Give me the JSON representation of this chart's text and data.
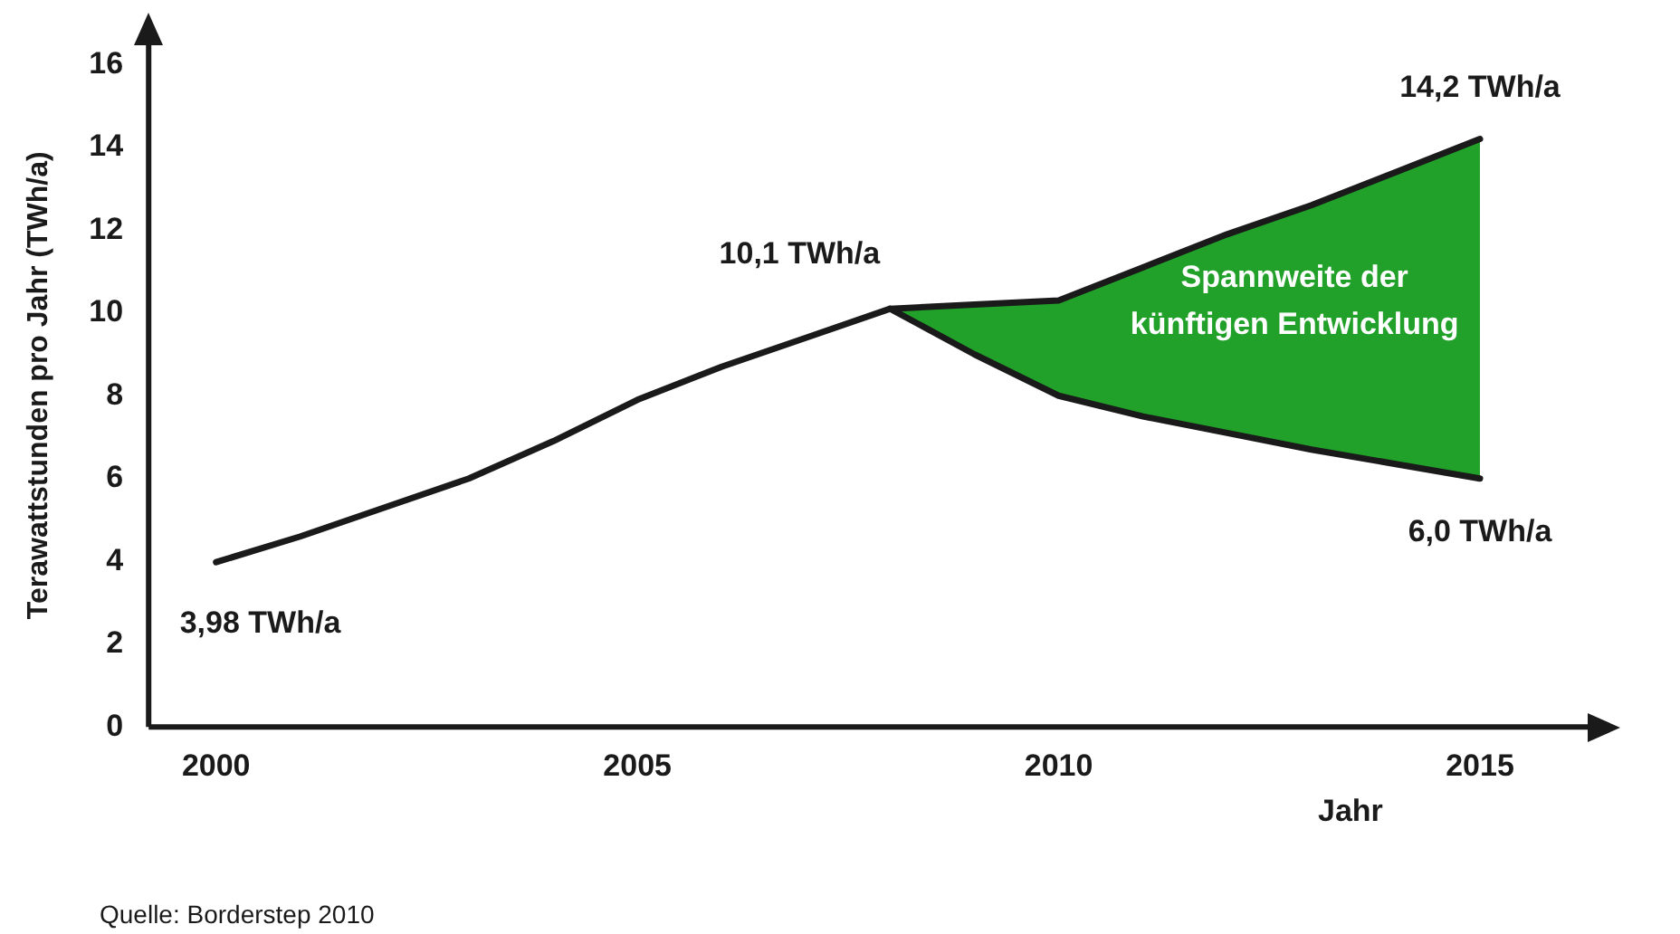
{
  "chart_data": {
    "type": "line",
    "xlabel": "Jahr",
    "ylabel": "Terawattstunden pro Jahr (TWh/a)",
    "xlim": [
      1999.2,
      2016.3
    ],
    "xticks": [
      2000,
      2005,
      2010,
      2015
    ],
    "ylim": [
      0,
      16.5
    ],
    "yticks": [
      0,
      2,
      4,
      6,
      8,
      10,
      12,
      14,
      16
    ],
    "grid": false,
    "legend": false,
    "series": [
      {
        "type": "area",
        "color": "#22a12a",
        "x": [
          2008,
          2009,
          2010,
          2011,
          2012,
          2013,
          2014,
          2015
        ],
        "values": [
          10.1,
          10.2,
          10.3,
          11.1,
          11.9,
          12.6,
          13.4,
          14.2
        ]
      },
      {
        "color": "#1a1a1a",
        "x": [
          2000,
          2001,
          2002,
          2003,
          2004,
          2005,
          2006,
          2007,
          2008,
          2009,
          2010,
          2011,
          2012,
          2013,
          2014,
          2015
        ],
        "values": [
          3.98,
          4.6,
          5.3,
          6.0,
          6.9,
          7.9,
          8.7,
          9.4,
          10.1,
          10.2,
          10.3,
          11.1,
          11.9,
          12.6,
          13.4,
          14.2
        ]
      },
      {
        "color": "#1a1a1a",
        "x": [
          2008,
          2009,
          2010,
          2011,
          2012,
          2013,
          2014,
          2015
        ],
        "values": [
          10.1,
          9.0,
          8.0,
          7.5,
          7.1,
          6.7,
          6.35,
          6.0
        ]
      }
    ],
    "annotations": [
      {
        "text": "3,98 TWh/a",
        "x": 2000,
        "y": 3.98
      },
      {
        "text": "10,1 TWh/a",
        "x": 2008,
        "y": 10.1
      },
      {
        "text": "14,2 TWh/a",
        "x": 2015,
        "y": 14.2
      },
      {
        "text": "6,0 TWh/a",
        "x": 2015,
        "y": 6.0
      },
      "Spannweite der künftigen Entwicklung",
      "Quelle: Borderstep 2010"
    ]
  }
}
